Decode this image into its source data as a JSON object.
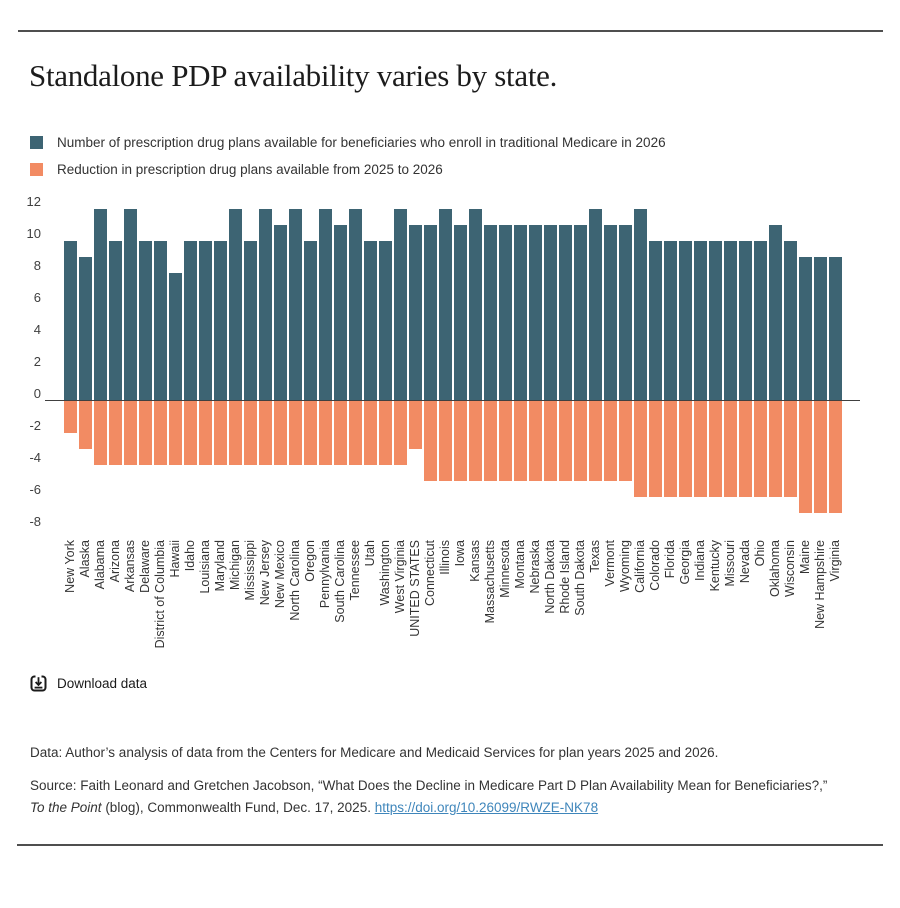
{
  "page": {
    "title": "Standalone PDP availability varies by state.",
    "colors": {
      "bar_positive": "#3d6473",
      "bar_negative": "#f28b63",
      "rule": "#4f4f4f",
      "axis_line": "#404040",
      "link": "#3f86bb"
    }
  },
  "legend": {
    "items": [
      {
        "label": "Number of prescription drug plans available for beneficiaries who enroll in traditional Medicare in 2026",
        "color": "#3d6473"
      },
      {
        "label": "Reduction in prescription drug plans available from 2025 to 2026",
        "color": "#f28b63"
      }
    ]
  },
  "chart_data": {
    "type": "bar",
    "title": "Standalone PDP availability varies by state.",
    "xlabel": "",
    "ylabel": "",
    "ylim": [
      -8.5,
      13
    ],
    "yticks": [
      12,
      10,
      8,
      6,
      4,
      2,
      0,
      -2,
      -4,
      -6,
      -8
    ],
    "grid": false,
    "legend_position": "top",
    "categories": [
      "New York",
      "Alaska",
      "Alabama",
      "Arizona",
      "Arkansas",
      "Delaware",
      "District of Columbia",
      "Hawaii",
      "Idaho",
      "Louisiana",
      "Maryland",
      "Michigan",
      "Mississippi",
      "New Jersey",
      "New Mexico",
      "North Carolina",
      "Oregon",
      "Pennylvania",
      "South Carolina",
      "Tennessee",
      "Utah",
      "Washington",
      "West Virginia",
      "UNITED STATES",
      "Connecticut",
      "Illinois",
      "Iowa",
      "Kansas",
      "Massachusetts",
      "Minnesota",
      "Montana",
      "Nebraska",
      "North Dakota",
      "Rhode Island",
      "South Dakota",
      "Texas",
      "Vermont",
      "Wyoming",
      "California",
      "Colorado",
      "Florida",
      "Georgia",
      "Indiana",
      "Kentucky",
      "Missouri",
      "Nevada",
      "Ohio",
      "Oklahoma",
      "Wisconsin",
      "Maine",
      "New Hampshire",
      "Virginia"
    ],
    "series": [
      {
        "name": "Number of prescription drug plans available for beneficiaries who enroll in traditional Medicare in 2026",
        "color": "#3d6473",
        "values": [
          10,
          9,
          12,
          10,
          12,
          10,
          10,
          8,
          10,
          10,
          10,
          12,
          10,
          12,
          11,
          12,
          10,
          12,
          11,
          12,
          10,
          10,
          12,
          11,
          11,
          12,
          11,
          12,
          11,
          11,
          11,
          11,
          11,
          11,
          11,
          12,
          11,
          11,
          12,
          10,
          10,
          10,
          10,
          10,
          10,
          10,
          10,
          11,
          10,
          9,
          9,
          9
        ]
      },
      {
        "name": "Reduction in prescription drug plans available from 2025 to 2026",
        "color": "#f28b63",
        "values": [
          -2,
          -3,
          -4,
          -4,
          -4,
          -4,
          -4,
          -4,
          -4,
          -4,
          -4,
          -4,
          -4,
          -4,
          -4,
          -4,
          -4,
          -4,
          -4,
          -4,
          -4,
          -4,
          -4,
          -3,
          -5,
          -5,
          -5,
          -5,
          -5,
          -5,
          -5,
          -5,
          -5,
          -5,
          -5,
          -5,
          -5,
          -5,
          -6,
          -6,
          -6,
          -6,
          -6,
          -6,
          -6,
          -6,
          -6,
          -6,
          -6,
          -7,
          -7,
          -7
        ]
      }
    ]
  },
  "download": {
    "label": "Download data"
  },
  "notes": {
    "data_note": "Data: Author’s analysis of data from the Centers for Medicare and Medicaid Services for plan years 2025 and 2026.",
    "source_prefix": "Source: Faith Leonard and Gretchen Jacobson, “What Does the Decline in Medicare Part D Plan Availability Mean for Beneficiaries?,” ",
    "source_italic": "To the Point",
    "source_middle": " (blog), Commonwealth Fund, Dec. 17, 2025. ",
    "source_link": "https://doi.org/10.26099/RWZE-NK78"
  }
}
